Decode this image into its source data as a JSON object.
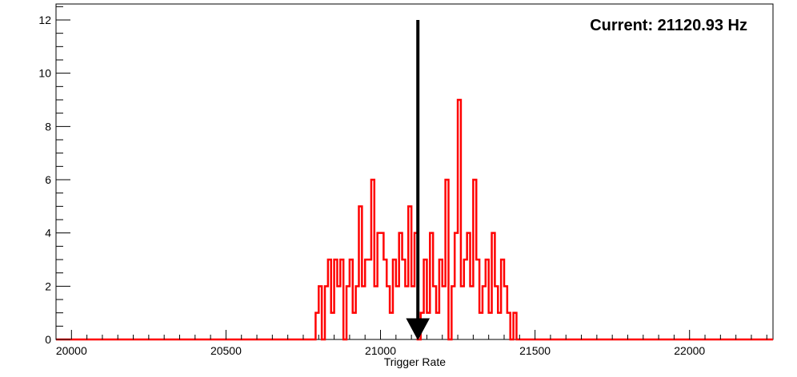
{
  "chart_data": {
    "type": "histogram",
    "title": "",
    "xlabel": "Trigger Rate",
    "ylabel": "",
    "xlim": [
      19950,
      22270
    ],
    "ylim": [
      0,
      12.6
    ],
    "x_ticks": [
      20000,
      20500,
      21000,
      21500,
      22000
    ],
    "y_ticks": [
      0,
      2,
      4,
      6,
      8,
      10,
      12
    ],
    "grid": false,
    "line_color": "#ff0000",
    "annotation": {
      "text": "Current: 21120.93 Hz",
      "arrow_x": 21120.93,
      "arrow_from_y": 12,
      "arrow_to_y": 0,
      "color": "#000000"
    },
    "series": [
      {
        "bin_width": 10,
        "bins": [
          [
            20790,
            1
          ],
          [
            20800,
            2
          ],
          [
            20810,
            0
          ],
          [
            20820,
            2
          ],
          [
            20830,
            3
          ],
          [
            20840,
            1
          ],
          [
            20850,
            3
          ],
          [
            20860,
            2
          ],
          [
            20870,
            3
          ],
          [
            20880,
            0
          ],
          [
            20890,
            2
          ],
          [
            20900,
            3
          ],
          [
            20910,
            1
          ],
          [
            20920,
            2
          ],
          [
            20930,
            5
          ],
          [
            20940,
            2
          ],
          [
            20950,
            3
          ],
          [
            20960,
            3
          ],
          [
            20970,
            6
          ],
          [
            20980,
            2
          ],
          [
            20990,
            4
          ],
          [
            21000,
            4
          ],
          [
            21010,
            3
          ],
          [
            21020,
            2
          ],
          [
            21030,
            1
          ],
          [
            21040,
            3
          ],
          [
            21050,
            2
          ],
          [
            21060,
            4
          ],
          [
            21070,
            3
          ],
          [
            21080,
            2
          ],
          [
            21090,
            5
          ],
          [
            21100,
            2
          ],
          [
            21110,
            4
          ],
          [
            21120,
            0
          ],
          [
            21130,
            1
          ],
          [
            21140,
            3
          ],
          [
            21150,
            1
          ],
          [
            21160,
            4
          ],
          [
            21170,
            2
          ],
          [
            21180,
            1
          ],
          [
            21190,
            3
          ],
          [
            21200,
            2
          ],
          [
            21210,
            6
          ],
          [
            21220,
            0
          ],
          [
            21230,
            2
          ],
          [
            21240,
            4
          ],
          [
            21250,
            9
          ],
          [
            21260,
            2
          ],
          [
            21270,
            3
          ],
          [
            21280,
            4
          ],
          [
            21290,
            2
          ],
          [
            21300,
            6
          ],
          [
            21310,
            3
          ],
          [
            21320,
            1
          ],
          [
            21330,
            2
          ],
          [
            21340,
            3
          ],
          [
            21350,
            1
          ],
          [
            21360,
            4
          ],
          [
            21370,
            2
          ],
          [
            21380,
            1
          ],
          [
            21390,
            3
          ],
          [
            21400,
            2
          ],
          [
            21410,
            1
          ],
          [
            21420,
            0
          ],
          [
            21430,
            1
          ]
        ]
      }
    ]
  }
}
